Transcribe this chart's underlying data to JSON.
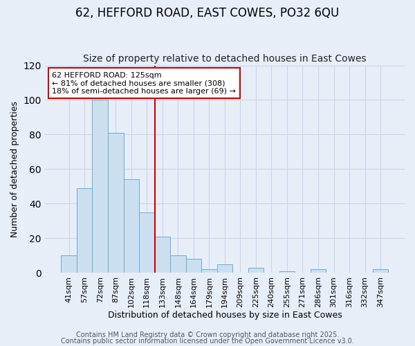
{
  "title": "62, HEFFORD ROAD, EAST COWES, PO32 6QU",
  "subtitle": "Size of property relative to detached houses in East Cowes",
  "xlabel": "Distribution of detached houses by size in East Cowes",
  "ylabel": "Number of detached properties",
  "bar_labels": [
    "41sqm",
    "57sqm",
    "72sqm",
    "87sqm",
    "102sqm",
    "118sqm",
    "133sqm",
    "148sqm",
    "164sqm",
    "179sqm",
    "194sqm",
    "209sqm",
    "225sqm",
    "240sqm",
    "255sqm",
    "271sqm",
    "286sqm",
    "301sqm",
    "316sqm",
    "332sqm",
    "347sqm"
  ],
  "bar_values": [
    10,
    49,
    100,
    81,
    54,
    35,
    21,
    10,
    8,
    2,
    5,
    0,
    3,
    0,
    1,
    0,
    2,
    0,
    0,
    0,
    2
  ],
  "bar_color": "#ccdff0",
  "bar_edgecolor": "#6aaad4",
  "bar_width": 1.0,
  "ylim": [
    0,
    120
  ],
  "vline_x": 5.5,
  "vline_color": "#cc0000",
  "annotation_text": "62 HEFFORD ROAD: 125sqm\n← 81% of detached houses are smaller (308)\n18% of semi-detached houses are larger (69) →",
  "footer1": "Contains HM Land Registry data © Crown copyright and database right 2025.",
  "footer2": "Contains public sector information licensed under the Open Government Licence v3.0.",
  "background_color": "#e8eef8",
  "plot_bg_color": "#e8eef8",
  "grid_color": "#c8d4e8",
  "title_fontsize": 12,
  "subtitle_fontsize": 10,
  "axis_label_fontsize": 9,
  "tick_fontsize": 8,
  "annotation_fontsize": 8,
  "footer_fontsize": 7
}
